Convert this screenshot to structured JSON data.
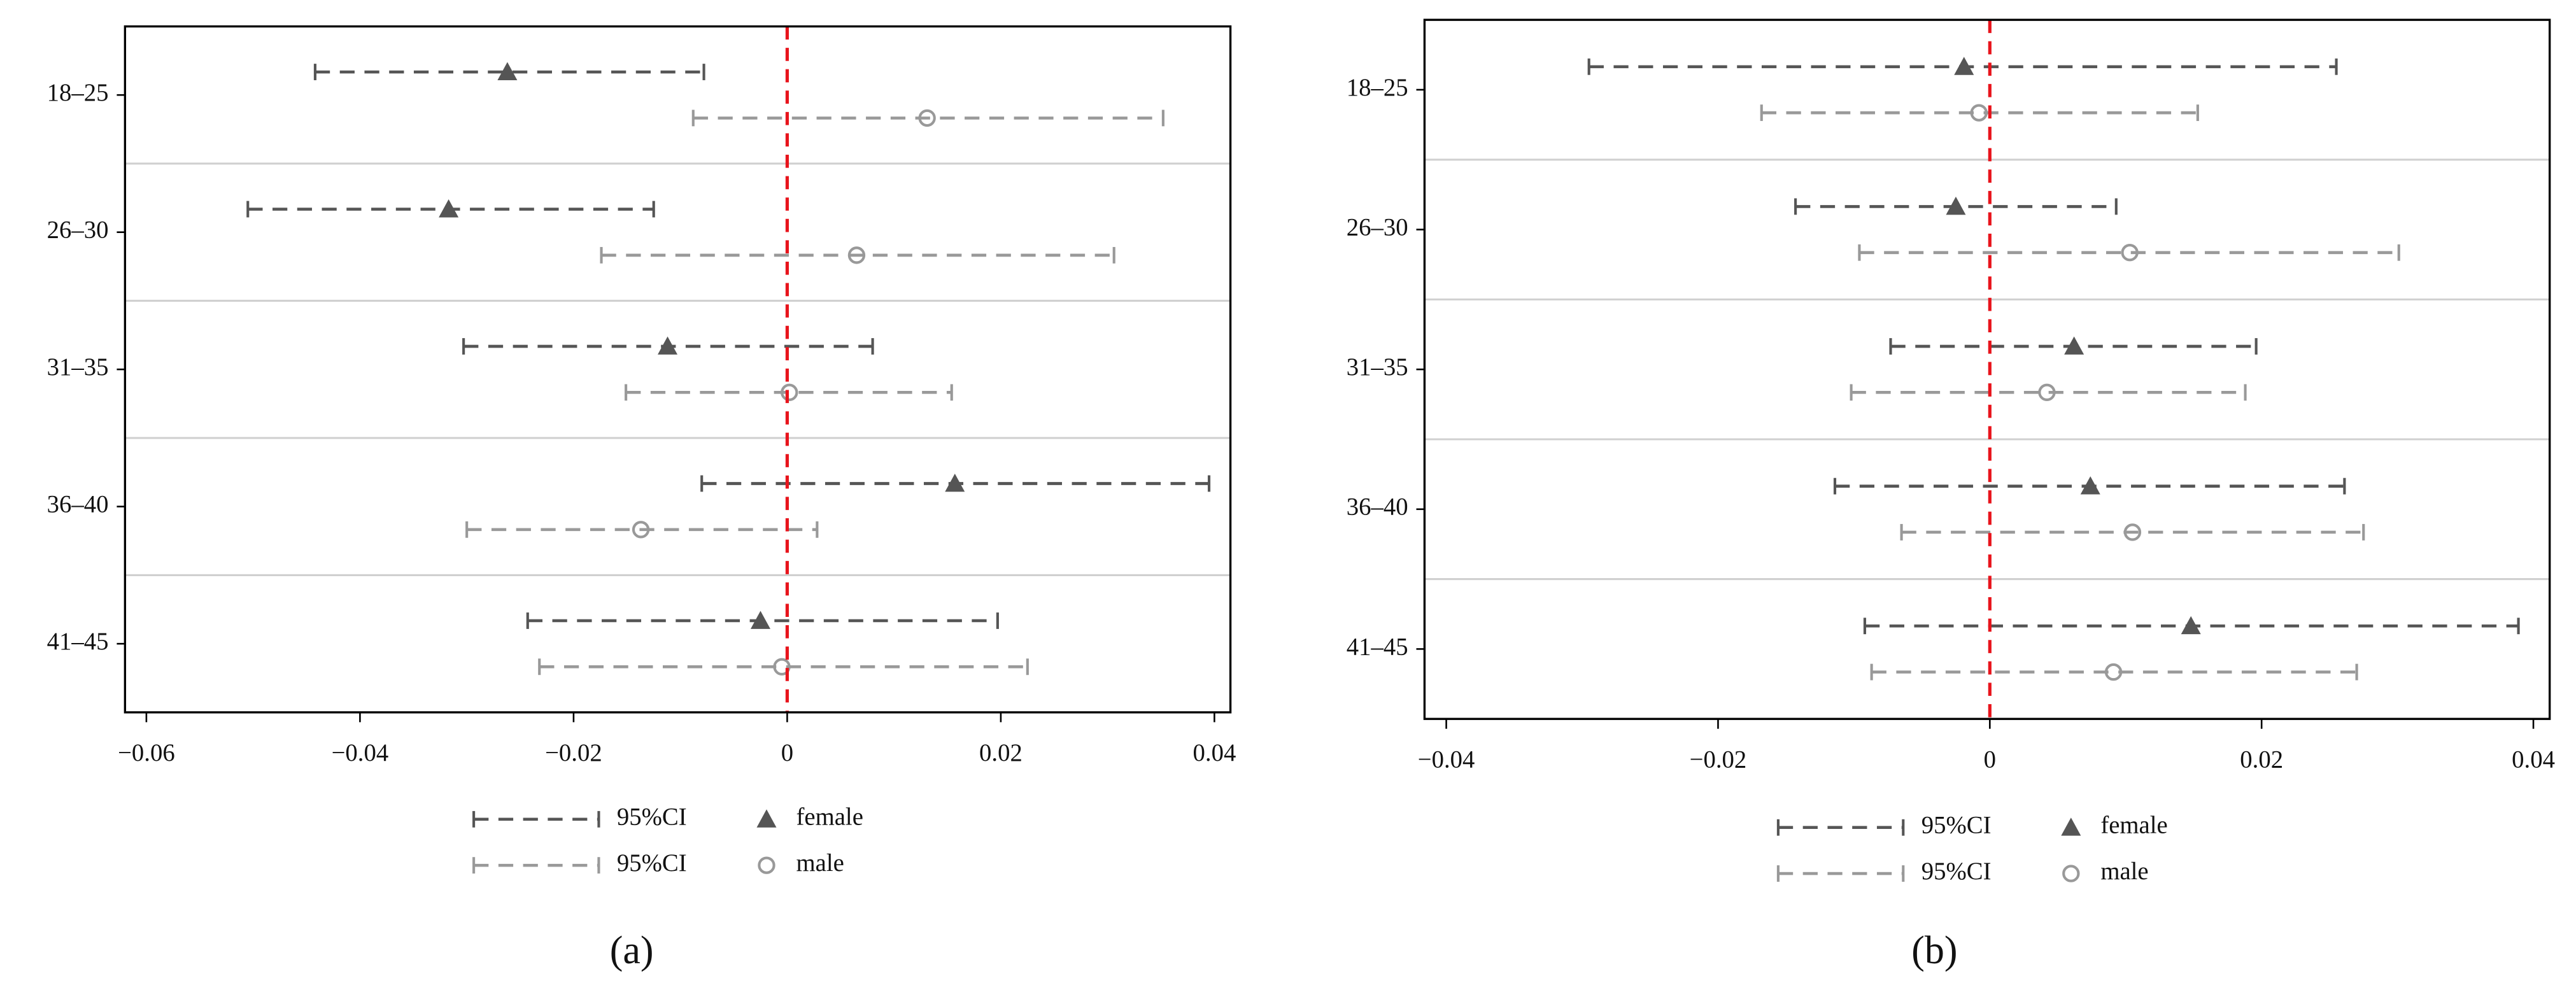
{
  "chart_data": [
    {
      "type": "forest",
      "panel_label": "(a)",
      "categories": [
        "18–25",
        "26–30",
        "31–35",
        "36–40",
        "41–45"
      ],
      "series": [
        {
          "name": "female",
          "ci_label": "95%CI",
          "color": "#555555",
          "marker": "triangle",
          "values": [
            -0.0262,
            -0.0317,
            -0.0112,
            0.0157,
            -0.0025
          ],
          "lower": [
            -0.0442,
            -0.0505,
            -0.0303,
            -0.008,
            -0.0243
          ],
          "upper": [
            -0.0078,
            -0.0125,
            0.008,
            0.0395,
            0.0197
          ]
        },
        {
          "name": "male",
          "ci_label": "95%CI",
          "color": "#999999",
          "marker": "circle",
          "values": [
            0.0131,
            0.0065,
            0.0002,
            -0.0137,
            -0.0005
          ],
          "lower": [
            -0.0088,
            -0.0174,
            -0.0151,
            -0.03,
            -0.0232
          ],
          "upper": [
            0.0352,
            0.0306,
            0.0154,
            0.0028,
            0.0225
          ]
        }
      ],
      "xlim": [
        -0.062,
        0.0415
      ],
      "xticks": [
        {
          "value": -0.06,
          "label": "−0.06"
        },
        {
          "value": -0.04,
          "label": "−0.04"
        },
        {
          "value": -0.02,
          "label": "−0.02"
        },
        0,
        0.02,
        0.04
      ],
      "reference_line": 0,
      "reference_color": "#e8141c"
    },
    {
      "type": "forest",
      "panel_label": "(b)",
      "categories": [
        "18–25",
        "26–30",
        "31–35",
        "36–40",
        "41–45"
      ],
      "series": [
        {
          "name": "female",
          "ci_label": "95%CI",
          "color": "#555555",
          "marker": "triangle",
          "values": [
            -0.0019,
            -0.0025,
            0.0062,
            0.0074,
            0.0148
          ],
          "lower": [
            -0.0295,
            -0.0143,
            -0.0073,
            -0.0114,
            -0.0092
          ],
          "upper": [
            0.0255,
            0.0093,
            0.0196,
            0.0261,
            0.0389
          ]
        },
        {
          "name": "male",
          "ci_label": "95%CI",
          "color": "#999999",
          "marker": "circle",
          "values": [
            -0.0008,
            0.0103,
            0.0042,
            0.0105,
            0.0091
          ],
          "lower": [
            -0.0168,
            -0.0096,
            -0.0102,
            -0.0065,
            -0.0087
          ],
          "upper": [
            0.0153,
            0.0301,
            0.0188,
            0.0275,
            0.027
          ]
        }
      ],
      "xlim": [
        -0.0416,
        0.0412
      ],
      "xticks": [
        {
          "value": -0.04,
          "label": "−0.04"
        },
        {
          "value": -0.02,
          "label": "−0.02"
        },
        0,
        0.02,
        0.04
      ],
      "reference_line": 0,
      "reference_color": "#e8141c"
    }
  ]
}
